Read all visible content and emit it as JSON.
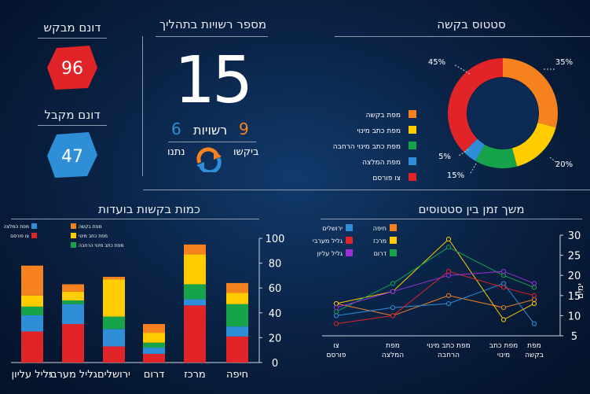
{
  "left_panel": {
    "rejected": {
      "title": "דונם מבקש",
      "value": "96",
      "color": "#e02428"
    },
    "accepted": {
      "title": "דונם מקבל",
      "value": "47",
      "color": "#2e8fd8"
    }
  },
  "licenses_panel": {
    "title": "מספר רשויות בתהליך",
    "total": "15",
    "requested_value": "9",
    "requested_label": "ביקשו",
    "requested_color": "#f5821f",
    "word": "רשויות",
    "given_value": "6",
    "given_label": "נתנו",
    "given_color": "#2e8fd8",
    "icon": "refresh-cycle-icon"
  },
  "chart_data": [
    {
      "id": "status-donut",
      "type": "pie",
      "title": "סטטוס בקשה",
      "slices": [
        {
          "name": "מפת בקשה",
          "value": 35,
          "label": "35%",
          "color": "#f5821f"
        },
        {
          "name": "מפת כתב מינוי",
          "value": 20,
          "label": "20%",
          "color": "#ffcc00"
        },
        {
          "name": "מפת כתב מינוי הרחבה",
          "value": 15,
          "label": "15%",
          "color": "#16a34a"
        },
        {
          "name": "מפת המלצה",
          "value": 5,
          "label": "5%",
          "color": "#2e8fd8"
        },
        {
          "name": "צו פורסם",
          "value": 45,
          "label": "45%",
          "color": "#e02428"
        }
      ]
    },
    {
      "id": "committees-bar",
      "type": "bar",
      "title": "כמות בקשות בועדות",
      "categories": [
        "חיפה",
        "מרכז",
        "דרום",
        "ירושלים",
        "גליל מערבי",
        "גליל עליון"
      ],
      "ylim": [
        0,
        100
      ],
      "yticks": [
        "0",
        "20",
        "40",
        "60",
        "80",
        "100"
      ],
      "series": [
        {
          "name": "צו פורסם",
          "color": "#e02428",
          "values": [
            21,
            46,
            7,
            13,
            31,
            25
          ]
        },
        {
          "name": "מפת המלצה",
          "color": "#2e8fd8",
          "values": [
            8,
            5,
            5,
            14,
            16,
            13
          ]
        },
        {
          "name": "מפת כתב מינוי הרחבה",
          "color": "#16a34a",
          "values": [
            18,
            12,
            4,
            10,
            3,
            7
          ]
        },
        {
          "name": "מפת כתב מינוי",
          "color": "#ffcc00",
          "values": [
            9,
            24,
            8,
            30,
            7,
            9
          ]
        },
        {
          "name": "מפת בקשה",
          "color": "#f5821f",
          "values": [
            8,
            8,
            7,
            2,
            6,
            24
          ]
        }
      ]
    },
    {
      "id": "status-time-line",
      "type": "line",
      "title": "משך זמן בין סטטוסים",
      "categories": [
        "מפת בקשה",
        "מפת כתב מינוי",
        "מפת כתב מינוי הרחבה",
        "מפת המלצה",
        "צו פורסם"
      ],
      "x_tick_lines": [
        [
          "מפת",
          "בקשה"
        ],
        [
          "מפת כתב",
          "מינוי"
        ],
        [
          "מפת כתב מינוי",
          "הרחבה"
        ],
        [
          "מפת",
          "המלצה"
        ],
        [
          "צו",
          "פורסם"
        ]
      ],
      "ylim": [
        5,
        30
      ],
      "yticks": [
        "5",
        "10",
        "15",
        "20",
        "25",
        "30"
      ],
      "ylabel": "ימים",
      "series": [
        {
          "name": "חיפה",
          "color": "#f5821f",
          "values": [
            14,
            12,
            15,
            10,
            13
          ]
        },
        {
          "name": "ירושלים",
          "color": "#2e8fd8",
          "values": [
            8,
            18,
            13,
            12,
            10
          ]
        },
        {
          "name": "מרכז",
          "color": "#ffcc00",
          "values": [
            13,
            9,
            29,
            16,
            13
          ]
        },
        {
          "name": "גליל מערבי",
          "color": "#e02428",
          "values": [
            15,
            17,
            21,
            10,
            8
          ]
        },
        {
          "name": "דרום",
          "color": "#16a34a",
          "values": [
            17,
            20,
            27,
            18,
            11
          ]
        },
        {
          "name": "גליל עליון",
          "color": "#9b30d9",
          "values": [
            18,
            21,
            20,
            16,
            12
          ]
        }
      ]
    }
  ]
}
